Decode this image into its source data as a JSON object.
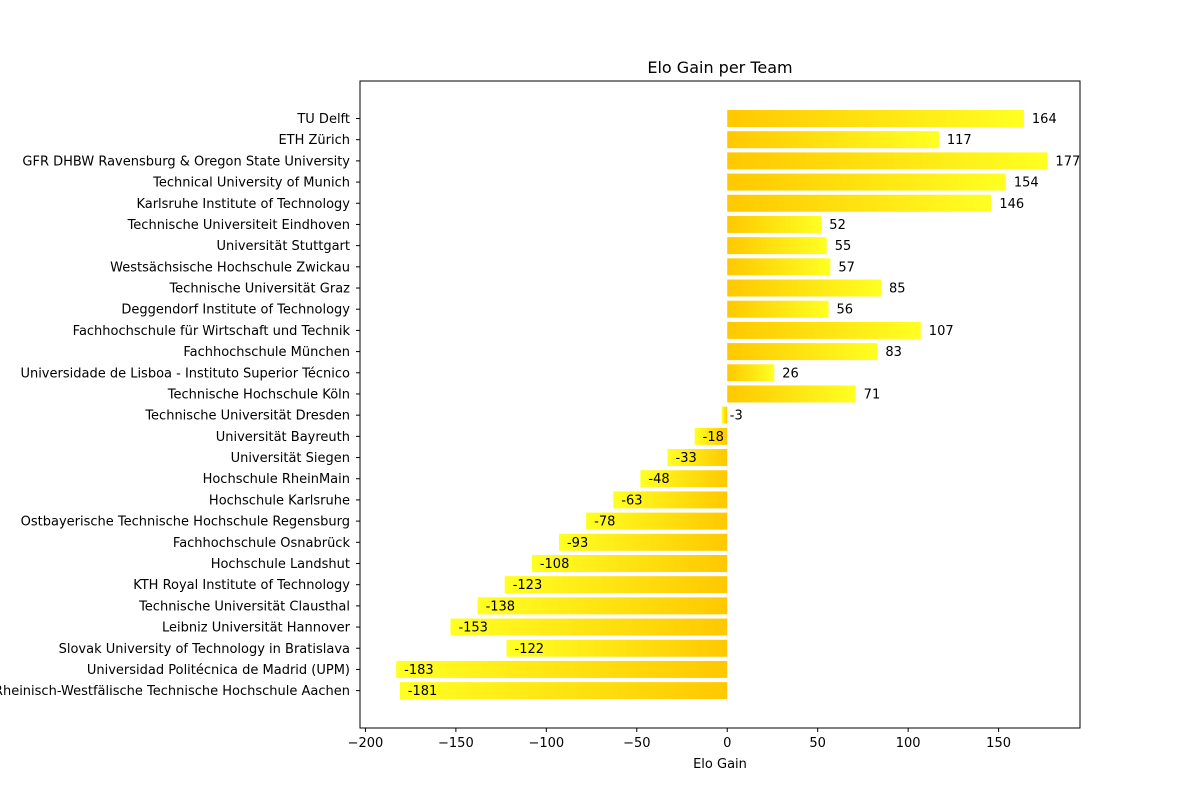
{
  "chart_data": {
    "type": "bar",
    "orientation": "horizontal",
    "title": "Elo Gain per Team",
    "xlabel": "Elo Gain",
    "ylabel": "",
    "xlim": [
      -203,
      195
    ],
    "xticks": [
      -200,
      -150,
      -100,
      -50,
      0,
      50,
      100,
      150
    ],
    "grid": false,
    "legend": "none",
    "colors": {
      "gradient_dark": "#FFC800",
      "gradient_light": "#FFFF22"
    },
    "categories": [
      "TU Delft",
      "ETH Zürich",
      "GFR DHBW Ravensburg & Oregon State University",
      "Technical University of Munich",
      "Karlsruhe Institute of Technology",
      "Technische Universiteit Eindhoven",
      "Universität Stuttgart",
      "Westsächsische Hochschule Zwickau",
      "Technische Universität Graz",
      "Deggendorf Institute of Technology",
      "Fachhochschule für Wirtschaft und Technik",
      "Fachhochschule München",
      "Universidade de Lisboa - Instituto Superior Técnico",
      "Technische Hochschule Köln",
      "Technische Universität Dresden",
      "Universität Bayreuth",
      "Universität Siegen",
      "Hochschule RheinMain",
      "Hochschule Karlsruhe",
      "Ostbayerische Technische Hochschule Regensburg",
      "Fachhochschule Osnabrück",
      "Hochschule Landshut",
      "KTH Royal Institute of Technology",
      "Technische Universität Clausthal",
      "Leibniz Universität Hannover",
      "Slovak University of Technology in Bratislava",
      "Universidad Politécnica de Madrid (UPM)",
      "Rheinisch-Westfälische Technische Hochschule Aachen"
    ],
    "values": [
      164,
      117,
      177,
      154,
      146,
      52,
      55,
      57,
      85,
      56,
      107,
      83,
      26,
      71,
      -3,
      -18,
      -33,
      -48,
      -63,
      -78,
      -93,
      -108,
      -123,
      -138,
      -153,
      -122,
      -183,
      -181
    ]
  }
}
